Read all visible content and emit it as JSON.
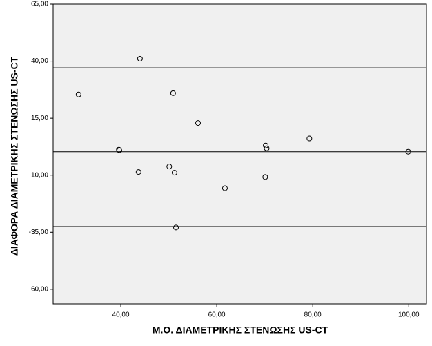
{
  "chart_data": {
    "type": "scatter",
    "x_label": "Μ.Ο. ΔΙΑΜΕΤΡΙΚΗΣ ΣΤΕΝΩΣΗΣ US-CT",
    "y_label": "ΔΙΑΦΟΡΑ ΔΙΑΜΕΤΡΙΚΗΣ ΣΤΕΝΩΣΗΣ US-CT",
    "x": [
      31.2,
      44.0,
      50.9,
      39.6,
      39.7,
      56.1,
      43.7,
      50.1,
      51.2,
      61.7,
      70.1,
      70.2,
      70.4,
      79.3,
      99.9,
      51.5
    ],
    "values": [
      25.4,
      41.1,
      26.0,
      1.2,
      0.9,
      12.9,
      -8.6,
      -6.2,
      -8.9,
      -15.7,
      -10.8,
      3.0,
      1.8,
      6.1,
      0.3,
      -32.9
    ],
    "color": "#000000",
    "reference_lines": [
      37.1,
      0.3,
      -32.5
    ],
    "xlim": [
      25.9,
      103.7
    ],
    "ylim": [
      -66.4,
      65
    ],
    "xticks": [
      {
        "value": 40,
        "label": "40,00"
      },
      {
        "value": 60,
        "label": "60,00"
      },
      {
        "value": 80,
        "label": "80,00"
      },
      {
        "value": 100,
        "label": "100,00"
      }
    ],
    "yticks": [
      {
        "value": 65,
        "label": "65,00"
      },
      {
        "value": 40,
        "label": "40,00"
      },
      {
        "value": 15,
        "label": "15,00"
      },
      {
        "value": -10,
        "label": "-10,00"
      },
      {
        "value": -35,
        "label": "-35,00"
      },
      {
        "value": -60,
        "label": "-60,00"
      }
    ]
  }
}
